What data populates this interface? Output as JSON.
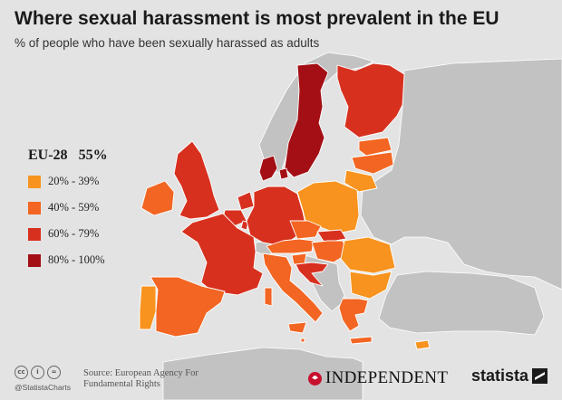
{
  "title": "Where sexual harassment is most prevalent in the EU",
  "subtitle": "% of people who have been sexually harassed as adults",
  "legend": {
    "summary_label": "EU-28",
    "summary_value": "55%",
    "items": [
      {
        "label": "20% - 39%",
        "color": "#f7931e"
      },
      {
        "label": "40% - 59%",
        "color": "#f26522"
      },
      {
        "label": "60% - 79%",
        "color": "#d7301f"
      },
      {
        "label": "80% - 100%",
        "color": "#a30f15"
      }
    ]
  },
  "colors": {
    "background": "#e3e3e3",
    "non_eu_land": "#c2c2c2",
    "border": "#ffffff"
  },
  "regions": [
    {
      "name": "Sweden",
      "band": "80-100"
    },
    {
      "name": "Denmark",
      "band": "80-100"
    },
    {
      "name": "Finland",
      "band": "60-79"
    },
    {
      "name": "United Kingdom",
      "band": "60-79"
    },
    {
      "name": "France",
      "band": "60-79"
    },
    {
      "name": "Netherlands",
      "band": "60-79"
    },
    {
      "name": "Belgium",
      "band": "60-79"
    },
    {
      "name": "Luxembourg",
      "band": "60-79"
    },
    {
      "name": "Germany",
      "band": "60-79"
    },
    {
      "name": "Slovakia",
      "band": "60-79"
    },
    {
      "name": "Croatia",
      "band": "60-79"
    },
    {
      "name": "Ireland",
      "band": "40-59"
    },
    {
      "name": "Spain",
      "band": "40-59"
    },
    {
      "name": "Portugal",
      "band": "20-39"
    },
    {
      "name": "Italy",
      "band": "40-59"
    },
    {
      "name": "Austria",
      "band": "40-59"
    },
    {
      "name": "Czech Republic",
      "band": "40-59"
    },
    {
      "name": "Hungary",
      "band": "40-59"
    },
    {
      "name": "Slovenia",
      "band": "40-59"
    },
    {
      "name": "Greece",
      "band": "40-59"
    },
    {
      "name": "Estonia",
      "band": "40-59"
    },
    {
      "name": "Latvia",
      "band": "40-59"
    },
    {
      "name": "Malta",
      "band": "40-59"
    },
    {
      "name": "Poland",
      "band": "20-39"
    },
    {
      "name": "Lithuania",
      "band": "20-39"
    },
    {
      "name": "Romania",
      "band": "20-39"
    },
    {
      "name": "Bulgaria",
      "band": "20-39"
    },
    {
      "name": "Cyprus",
      "band": "20-39"
    }
  ],
  "footer": {
    "cc_icons": [
      "cc-icon",
      "by-icon",
      "equals-icon"
    ],
    "handle": "@StatistaCharts",
    "source": "Source: European Agency For Fundamental Rights",
    "partner": "INDEPENDENT",
    "brand": "statista"
  }
}
